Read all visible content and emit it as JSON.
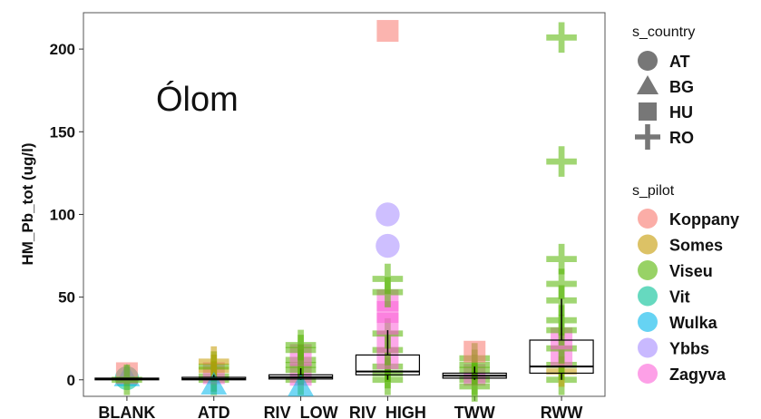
{
  "chart_data": {
    "type": "boxplot",
    "annotation": "Ólom",
    "ylabel": "HM_Pb_tot (ug/l)",
    "xlabel": "",
    "ylim": [
      -10,
      222
    ],
    "yticks": [
      0,
      50,
      100,
      150,
      200
    ],
    "categories": [
      "BLANK",
      "ATD",
      "RIV_LOW",
      "RIV_HIGH",
      "TWW",
      "RWW"
    ],
    "boxes": [
      {
        "category": "BLANK",
        "q1": 0,
        "median": 0.5,
        "q3": 1,
        "whisker_low": 0,
        "whisker_high": 1
      },
      {
        "category": "ATD",
        "q1": 0,
        "median": 0.5,
        "q3": 1.5,
        "whisker_low": 0,
        "whisker_high": 3
      },
      {
        "category": "RIV_LOW",
        "q1": 0.5,
        "median": 1.5,
        "q3": 3,
        "whisker_low": 0,
        "whisker_high": 7
      },
      {
        "category": "RIV_HIGH",
        "q1": 3,
        "median": 5,
        "q3": 15,
        "whisker_low": 0,
        "whisker_high": 30
      },
      {
        "category": "TWW",
        "q1": 1,
        "median": 2.5,
        "q3": 4,
        "whisker_low": 0,
        "whisker_high": 8
      },
      {
        "category": "RWW",
        "q1": 4,
        "median": 8,
        "q3": 24,
        "whisker_low": 0,
        "whisker_high": 49
      }
    ],
    "points": [
      {
        "category": "BLANK",
        "y": 1,
        "country": "AT",
        "pilot": "Vit"
      },
      {
        "category": "BLANK",
        "y": 2,
        "country": "BG",
        "pilot": "Wulka"
      },
      {
        "category": "BLANK",
        "y": 4,
        "country": "HU",
        "pilot": "Koppany"
      },
      {
        "category": "BLANK",
        "y": 0,
        "country": "RO",
        "pilot": "Viseu"
      },
      {
        "category": "ATD",
        "y": 0,
        "country": "RO",
        "pilot": "Viseu"
      },
      {
        "category": "ATD",
        "y": 2,
        "country": "RO",
        "pilot": "Viseu"
      },
      {
        "category": "ATD",
        "y": 4,
        "country": "HU",
        "pilot": "Zagyva"
      },
      {
        "category": "ATD",
        "y": 6,
        "country": "RO",
        "pilot": "Somes"
      },
      {
        "category": "ATD",
        "y": 8,
        "country": "RO",
        "pilot": "Viseu"
      },
      {
        "category": "ATD",
        "y": 11,
        "country": "RO",
        "pilot": "Somes"
      },
      {
        "category": "ATD",
        "y": -3,
        "country": "BG",
        "pilot": "Wulka"
      },
      {
        "category": "RIV_LOW",
        "y": 0,
        "country": "RO",
        "pilot": "Viseu"
      },
      {
        "category": "RIV_LOW",
        "y": 3,
        "country": "HU",
        "pilot": "Zagyva"
      },
      {
        "category": "RIV_LOW",
        "y": 6,
        "country": "RO",
        "pilot": "Viseu"
      },
      {
        "category": "RIV_LOW",
        "y": 9,
        "country": "RO",
        "pilot": "Viseu"
      },
      {
        "category": "RIV_LOW",
        "y": 12,
        "country": "RO",
        "pilot": "Viseu"
      },
      {
        "category": "RIV_LOW",
        "y": 15,
        "country": "HU",
        "pilot": "Zagyva"
      },
      {
        "category": "RIV_LOW",
        "y": 18,
        "country": "RO",
        "pilot": "Viseu"
      },
      {
        "category": "RIV_LOW",
        "y": 21,
        "country": "RO",
        "pilot": "Viseu"
      },
      {
        "category": "RIV_LOW",
        "y": -4,
        "country": "BG",
        "pilot": "Wulka"
      },
      {
        "category": "RIV_HIGH",
        "y": 0,
        "country": "RO",
        "pilot": "Viseu"
      },
      {
        "category": "RIV_HIGH",
        "y": 4,
        "country": "RO",
        "pilot": "Viseu"
      },
      {
        "category": "RIV_HIGH",
        "y": 8,
        "country": "RO",
        "pilot": "Viseu"
      },
      {
        "category": "RIV_HIGH",
        "y": 13,
        "country": "HU",
        "pilot": "Zagyva"
      },
      {
        "category": "RIV_HIGH",
        "y": 18,
        "country": "RO",
        "pilot": "Viseu"
      },
      {
        "category": "RIV_HIGH",
        "y": 23,
        "country": "HU",
        "pilot": "Zagyva"
      },
      {
        "category": "RIV_HIGH",
        "y": 28,
        "country": "RO",
        "pilot": "Viseu"
      },
      {
        "category": "RIV_HIGH",
        "y": 34,
        "country": "HU",
        "pilot": "Zagyva"
      },
      {
        "category": "RIV_HIGH",
        "y": 41,
        "country": "HU",
        "pilot": "Zagyva"
      },
      {
        "category": "RIV_HIGH",
        "y": 48,
        "country": "HU",
        "pilot": "Zagyva"
      },
      {
        "category": "RIV_HIGH",
        "y": 53,
        "country": "RO",
        "pilot": "Viseu"
      },
      {
        "category": "RIV_HIGH",
        "y": 61,
        "country": "RO",
        "pilot": "Viseu"
      },
      {
        "category": "RIV_HIGH",
        "y": 81,
        "country": "AT",
        "pilot": "Ybbs"
      },
      {
        "category": "RIV_HIGH",
        "y": 100,
        "country": "AT",
        "pilot": "Ybbs"
      },
      {
        "category": "RIV_HIGH",
        "y": 211,
        "country": "HU",
        "pilot": "Koppany"
      },
      {
        "category": "TWW",
        "y": 0,
        "country": "RO",
        "pilot": "Viseu"
      },
      {
        "category": "TWW",
        "y": 3,
        "country": "HU",
        "pilot": "Zagyva"
      },
      {
        "category": "TWW",
        "y": 6,
        "country": "RO",
        "pilot": "Viseu"
      },
      {
        "category": "TWW",
        "y": 9,
        "country": "RO",
        "pilot": "Viseu"
      },
      {
        "category": "TWW",
        "y": 13,
        "country": "RO",
        "pilot": "Viseu"
      },
      {
        "category": "TWW",
        "y": 17,
        "country": "HU",
        "pilot": "Koppany"
      },
      {
        "category": "TWW",
        "y": -4,
        "country": "RO",
        "pilot": "Viseu"
      },
      {
        "category": "RWW",
        "y": 0,
        "country": "RO",
        "pilot": "Viseu"
      },
      {
        "category": "RWW",
        "y": 5,
        "country": "RO",
        "pilot": "Somes"
      },
      {
        "category": "RWW",
        "y": 9,
        "country": "RO",
        "pilot": "Viseu"
      },
      {
        "category": "RWW",
        "y": 14,
        "country": "HU",
        "pilot": "Zagyva"
      },
      {
        "category": "RWW",
        "y": 19,
        "country": "RO",
        "pilot": "Viseu"
      },
      {
        "category": "RWW",
        "y": 25,
        "country": "HU",
        "pilot": "Zagyva"
      },
      {
        "category": "RWW",
        "y": 30,
        "country": "RO",
        "pilot": "Viseu"
      },
      {
        "category": "RWW",
        "y": 36,
        "country": "RO",
        "pilot": "Viseu"
      },
      {
        "category": "RWW",
        "y": 48,
        "country": "RO",
        "pilot": "Viseu"
      },
      {
        "category": "RWW",
        "y": 58,
        "country": "RO",
        "pilot": "Viseu"
      },
      {
        "category": "RWW",
        "y": 73,
        "country": "RO",
        "pilot": "Viseu"
      },
      {
        "category": "RWW",
        "y": 132,
        "country": "RO",
        "pilot": "Viseu"
      },
      {
        "category": "RWW",
        "y": 207,
        "country": "RO",
        "pilot": "Viseu"
      }
    ],
    "legend_country": {
      "title": "s_country",
      "items": [
        {
          "label": "AT",
          "shape": "circle"
        },
        {
          "label": "BG",
          "shape": "triangle"
        },
        {
          "label": "HU",
          "shape": "square"
        },
        {
          "label": "RO",
          "shape": "plus"
        }
      ]
    },
    "legend_pilot": {
      "title": "s_pilot",
      "items": [
        {
          "label": "Koppany",
          "color": "#F8766D"
        },
        {
          "label": "Somes",
          "color": "#C49A00"
        },
        {
          "label": "Viseu",
          "color": "#53B400"
        },
        {
          "label": "Vit",
          "color": "#00C094"
        },
        {
          "label": "Wulka",
          "color": "#00B6EB"
        },
        {
          "label": "Ybbs",
          "color": "#A58AFF"
        },
        {
          "label": "Zagyva",
          "color": "#FB61D7"
        }
      ]
    },
    "legend_placement": "right",
    "grid": false
  }
}
